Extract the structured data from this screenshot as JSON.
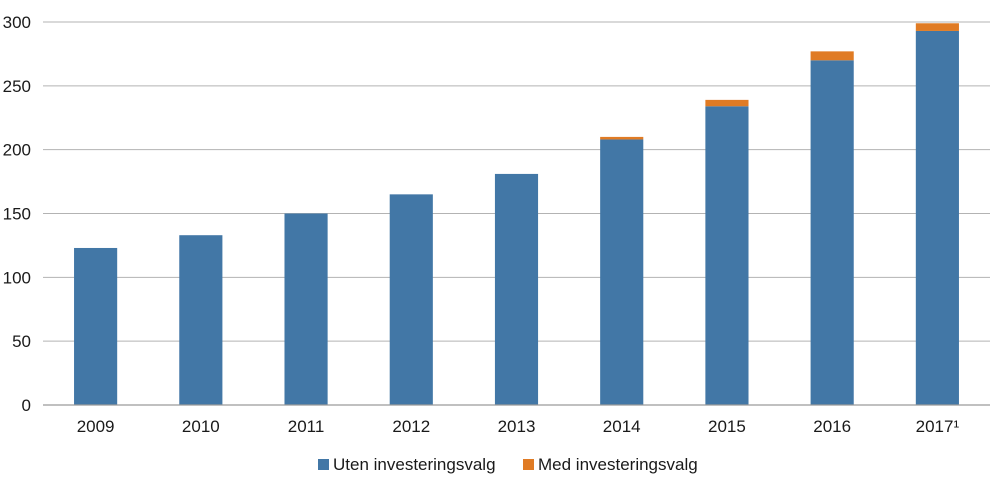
{
  "chart_data": {
    "type": "bar",
    "stacked": true,
    "categories": [
      "2009",
      "2010",
      "2011",
      "2012",
      "2013",
      "2014",
      "2015",
      "2016",
      "2017¹"
    ],
    "series": [
      {
        "name": "Uten investeringsvalg",
        "color": "#4277a6",
        "values": [
          123,
          133,
          150,
          165,
          181,
          208,
          234,
          270,
          293
        ]
      },
      {
        "name": "Med investeringsvalg",
        "color": "#e07b24",
        "values": [
          0,
          0,
          0,
          0,
          0,
          2,
          5,
          7,
          6
        ]
      }
    ],
    "yticks": [
      "0",
      "50",
      "100",
      "150",
      "200",
      "250",
      "300"
    ],
    "ylim": [
      0,
      300
    ],
    "grid": true,
    "legend": "bottom-center",
    "xlabel": "",
    "ylabel": ""
  }
}
